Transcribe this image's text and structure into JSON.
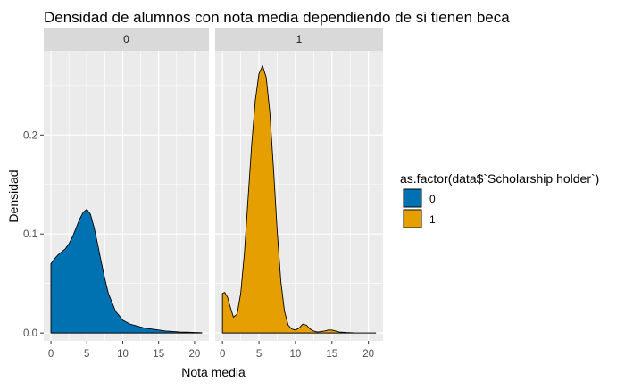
{
  "chart_data": {
    "type": "area",
    "subtype": "density-faceted",
    "title": "Densidad de alumnos con nota media dependiendo de si tienen beca",
    "xlabel": "Nota media",
    "ylabel": "Densidad",
    "xlim": [
      -1,
      22
    ],
    "ylim": [
      -0.008,
      0.285
    ],
    "x_ticks": [
      0,
      5,
      10,
      15,
      20
    ],
    "x_tick_labels": [
      "0",
      "5",
      "10",
      "15",
      "20"
    ],
    "y_ticks": [
      0.0,
      0.1,
      0.2
    ],
    "y_tick_labels": [
      "0.0",
      "0.1",
      "0.2"
    ],
    "grid": true,
    "legend": {
      "title": "as.factor(data$`Scholarship holder`)",
      "position": "right",
      "entries": [
        {
          "label": "0",
          "color": "#0072B2"
        },
        {
          "label": "1",
          "color": "#E69F00"
        }
      ]
    },
    "panels": [
      {
        "strip_label": "0",
        "fill": "#0072B2",
        "x": [
          0,
          0.5,
          1,
          1.5,
          2,
          2.5,
          3,
          3.5,
          4,
          4.5,
          5,
          5.5,
          6,
          6.5,
          7,
          7.5,
          8,
          9,
          10,
          11,
          12,
          13,
          14,
          15,
          16,
          17,
          18,
          19,
          20,
          21
        ],
        "y": [
          0.07,
          0.075,
          0.079,
          0.082,
          0.085,
          0.09,
          0.097,
          0.106,
          0.115,
          0.122,
          0.125,
          0.12,
          0.107,
          0.09,
          0.072,
          0.055,
          0.04,
          0.022,
          0.013,
          0.009,
          0.007,
          0.005,
          0.004,
          0.003,
          0.002,
          0.0015,
          0.001,
          0.0008,
          0.0005,
          0.0003
        ]
      },
      {
        "strip_label": "1",
        "fill": "#E69F00",
        "x": [
          0,
          0.3,
          0.7,
          1,
          1.5,
          2,
          2.5,
          3,
          3.5,
          4,
          4.5,
          5,
          5.5,
          6,
          6.5,
          7,
          7.5,
          8,
          8.5,
          9,
          9.5,
          10,
          10.5,
          11,
          11.5,
          12,
          12.5,
          13,
          14,
          14.5,
          15,
          16,
          17,
          18,
          19,
          20,
          21
        ],
        "y": [
          0.04,
          0.041,
          0.036,
          0.028,
          0.016,
          0.019,
          0.04,
          0.08,
          0.135,
          0.19,
          0.235,
          0.262,
          0.27,
          0.258,
          0.222,
          0.165,
          0.103,
          0.052,
          0.022,
          0.008,
          0.004,
          0.003,
          0.005,
          0.009,
          0.008,
          0.004,
          0.002,
          0.001,
          0.002,
          0.003,
          0.003,
          0.001,
          0.0005,
          0.0002,
          0.0001,
          0.0001,
          0.0001
        ]
      }
    ]
  }
}
